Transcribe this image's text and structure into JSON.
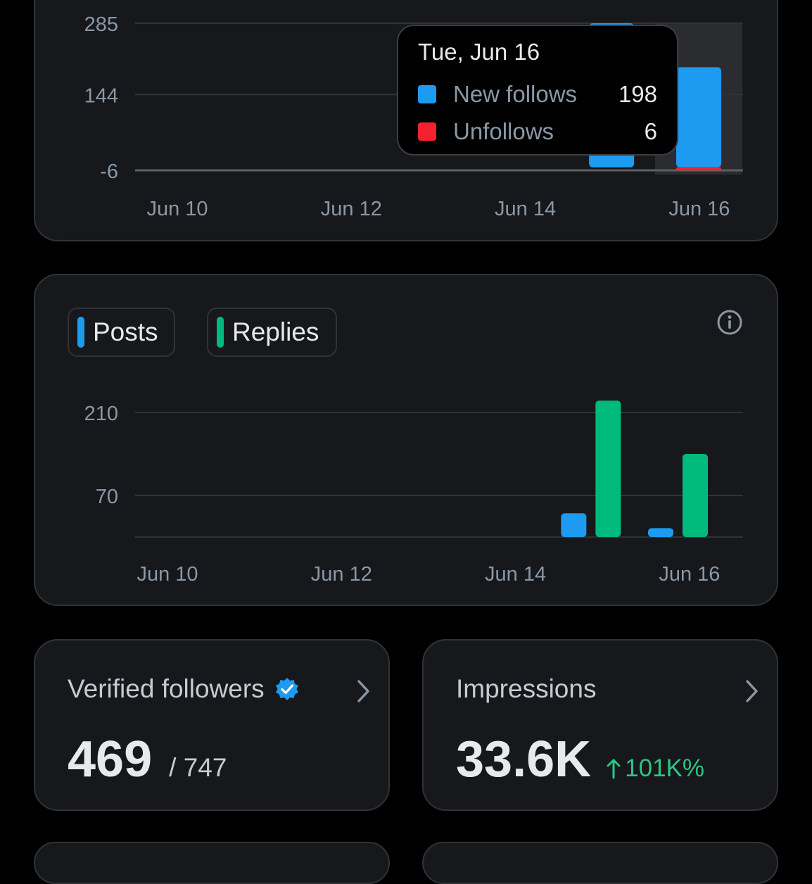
{
  "followers_chart": {
    "y_ticks": [
      "285",
      "144",
      "-6"
    ],
    "x_ticks": [
      "Jun 10",
      "Jun 12",
      "Jun 14",
      "Jun 16"
    ],
    "tooltip": {
      "title": "Tue, Jun 16",
      "rows": [
        {
          "label": "New follows",
          "value": "198",
          "color": "#1d9bf0"
        },
        {
          "label": "Unfollows",
          "value": "6",
          "color": "#f4212e"
        }
      ]
    }
  },
  "activity_chart": {
    "legend": [
      {
        "label": "Posts",
        "color": "#1d9bf0"
      },
      {
        "label": "Replies",
        "color": "#00ba7c"
      }
    ],
    "y_ticks": [
      "210",
      "70"
    ],
    "x_ticks": [
      "Jun 10",
      "Jun 12",
      "Jun 14",
      "Jun 16"
    ]
  },
  "verified_followers": {
    "title": "Verified followers",
    "value": "469",
    "total": "/ 747"
  },
  "impressions": {
    "title": "Impressions",
    "value": "33.6K",
    "change": "101K%"
  },
  "chart_data": [
    {
      "type": "bar",
      "categories": [
        "Jun 10",
        "Jun 11",
        "Jun 12",
        "Jun 13",
        "Jun 14",
        "Jun 15",
        "Jun 16"
      ],
      "series": [
        {
          "name": "New follows",
          "values": [
            0,
            0,
            0,
            0,
            0,
            285,
            198
          ],
          "color": "#1d9bf0"
        },
        {
          "name": "Unfollows",
          "values": [
            0,
            0,
            0,
            0,
            0,
            0,
            6
          ],
          "color": "#f4212e"
        }
      ],
      "ylim": [
        -6,
        285
      ],
      "y_ticks": [
        285,
        144,
        -6
      ],
      "grid": true,
      "highlighted_category": "Jun 16"
    },
    {
      "type": "bar",
      "categories": [
        "Jun 10",
        "Jun 11",
        "Jun 12",
        "Jun 13",
        "Jun 14",
        "Jun 15",
        "Jun 16"
      ],
      "series": [
        {
          "name": "Posts",
          "values": [
            0,
            0,
            0,
            0,
            0,
            40,
            15
          ],
          "color": "#1d9bf0"
        },
        {
          "name": "Replies",
          "values": [
            0,
            0,
            0,
            0,
            0,
            230,
            140
          ],
          "color": "#00ba7c"
        }
      ],
      "ylim": [
        0,
        235
      ],
      "y_ticks": [
        210,
        70
      ],
      "grid": true
    }
  ]
}
